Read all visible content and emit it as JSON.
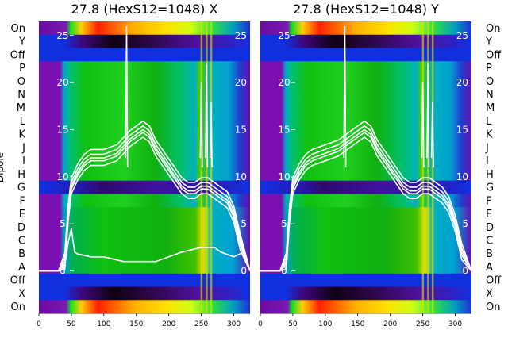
{
  "chart_data": [
    {
      "type": "heatmap",
      "title": "27.8 (HexS12=1048) X",
      "ylabel": "Dipole",
      "row_labels": [
        "On",
        "Y",
        "Off",
        "P",
        "O",
        "N",
        "M",
        "L",
        "K",
        "J",
        "I",
        "H",
        "G",
        "F",
        "E",
        "D",
        "C",
        "B",
        "A",
        "Off",
        "X",
        "On"
      ],
      "x_ticks": [
        0,
        50,
        100,
        150,
        200,
        250,
        300
      ],
      "xlim": [
        0,
        325
      ],
      "y_ticks": [
        0,
        5,
        10,
        15,
        20,
        25
      ],
      "ylim": [
        -4.5,
        26.5
      ],
      "grid": false,
      "legend": "none",
      "line_color": "#ffffff",
      "series_envelope": {
        "x": [
          0,
          30,
          40,
          45,
          50,
          60,
          70,
          80,
          100,
          120,
          140,
          160,
          170,
          180,
          190,
          200,
          210,
          220,
          230,
          240,
          250,
          260,
          270,
          280,
          290,
          300,
          310,
          325
        ],
        "y": [
          0,
          0,
          1,
          6,
          9,
          10.5,
          11.5,
          12,
          12,
          12.5,
          14,
          15,
          14.5,
          13,
          12,
          11,
          10,
          9,
          8.5,
          8.5,
          9,
          9,
          8.5,
          8,
          7.5,
          6,
          3,
          0
        ],
        "spikes_x": [
          135,
          250,
          258,
          265
        ]
      }
    },
    {
      "type": "heatmap",
      "title": "27.8 (HexS12=1048) Y",
      "row_labels": [
        "On",
        "Y",
        "Off",
        "P",
        "O",
        "N",
        "M",
        "L",
        "K",
        "J",
        "I",
        "H",
        "G",
        "F",
        "E",
        "D",
        "C",
        "B",
        "A",
        "Off",
        "X",
        "On"
      ],
      "x_ticks": [
        0,
        50,
        100,
        150,
        200,
        250,
        300
      ],
      "xlim": [
        0,
        325
      ],
      "y_ticks": [
        0,
        5,
        10,
        15,
        20,
        25
      ],
      "ylim": [
        -4.5,
        26.5
      ],
      "grid": false,
      "legend": "none",
      "line_color": "#ffffff",
      "series_envelope": {
        "x": [
          0,
          30,
          40,
          45,
          50,
          60,
          70,
          80,
          100,
          120,
          140,
          160,
          170,
          180,
          190,
          200,
          210,
          220,
          230,
          240,
          250,
          260,
          270,
          280,
          290,
          300,
          310,
          325
        ],
        "y": [
          0,
          0,
          1,
          6,
          9,
          10.5,
          11.5,
          12,
          12.5,
          13,
          14,
          15,
          14.5,
          13,
          12,
          11,
          10,
          9,
          8.5,
          8.5,
          9,
          9,
          8.5,
          8,
          7,
          5,
          2,
          0
        ],
        "spikes_x": [
          130,
          250,
          258,
          265
        ]
      }
    }
  ]
}
